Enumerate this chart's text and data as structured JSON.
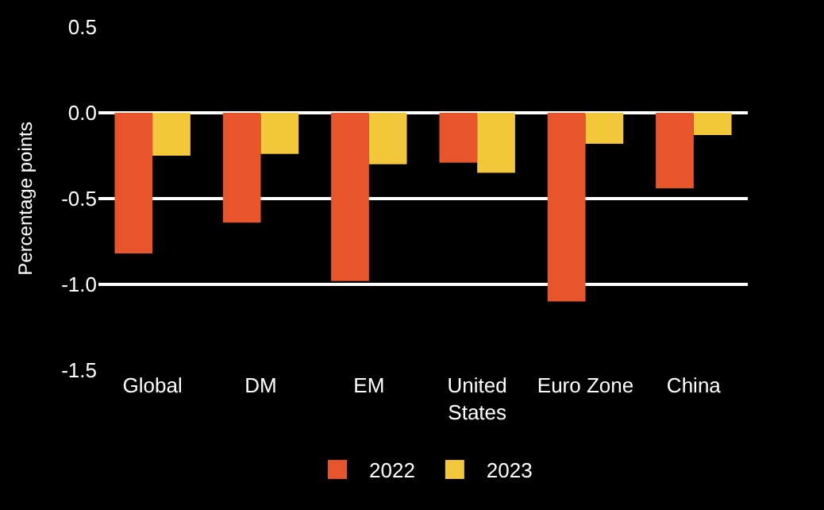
{
  "chart_data": {
    "type": "bar",
    "ylabel": "Percentage points",
    "categories": [
      "Global",
      "DM",
      "EM",
      "United States",
      "Euro Zone",
      "China"
    ],
    "series": [
      {
        "name": "2022",
        "color": "#e8552a",
        "values": [
          -0.82,
          -0.64,
          -0.98,
          -0.29,
          -1.1,
          -0.44
        ]
      },
      {
        "name": "2023",
        "color": "#f2c83a",
        "values": [
          -0.25,
          -0.24,
          -0.3,
          -0.35,
          -0.18,
          -0.13
        ]
      }
    ],
    "ylim": [
      -1.5,
      0.5
    ],
    "yticks": [
      {
        "value": -1.5,
        "label": "-1.5"
      },
      {
        "value": -1,
        "label": "-1.0"
      },
      {
        "value": -0.5,
        "label": "-0.5"
      },
      {
        "value": 0,
        "label": "0.0"
      },
      {
        "value": 0.5,
        "label": "0.5"
      }
    ],
    "grid": "y",
    "legend": "bottom"
  }
}
